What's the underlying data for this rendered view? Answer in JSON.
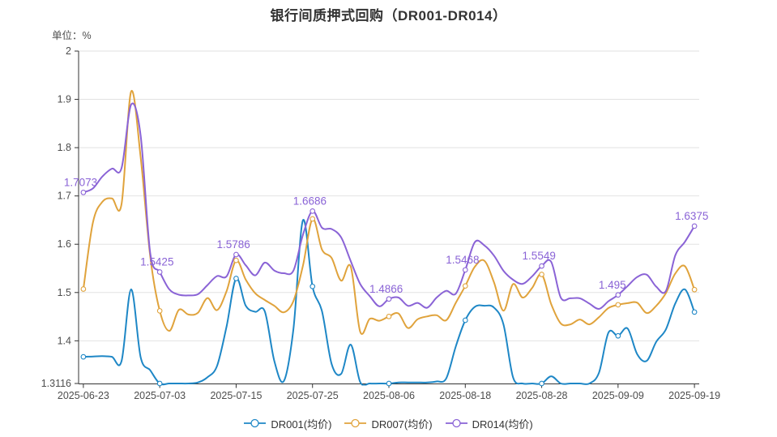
{
  "header": {
    "title": "银行间质押式回购（DR001-DR014）",
    "unit": "单位：%"
  },
  "chart_data": {
    "type": "line",
    "title": "银行间质押式回购（DR001-DR014）",
    "unit": "单位：%",
    "grid": true,
    "smooth": true,
    "legend_position": "bottom",
    "marker_every": 8,
    "ylim": [
      1.3116,
      2
    ],
    "y_tick_labels": [
      "1.3116",
      "1.4",
      "1.5",
      "1.6",
      "1.7",
      "1.8",
      "1.9",
      "2"
    ],
    "y_tick_values": [
      1.3116,
      1.4,
      1.5,
      1.6,
      1.7,
      1.8,
      1.9,
      2
    ],
    "x_tick_labels": [
      "2025-06-23",
      "2025-07-03",
      "2025-07-15",
      "2025-07-25",
      "2025-08-06",
      "2025-08-18",
      "2025-08-28",
      "2025-09-09",
      "2025-09-19"
    ],
    "x_tick_indices": [
      0,
      8,
      16,
      24,
      32,
      40,
      48,
      56,
      64
    ],
    "x": [
      "2025-06-23",
      "2025-06-24",
      "2025-06-25",
      "2025-06-26",
      "2025-06-27",
      "2025-06-30",
      "2025-07-01",
      "2025-07-02",
      "2025-07-03",
      "2025-07-04",
      "2025-07-07",
      "2025-07-08",
      "2025-07-09",
      "2025-07-10",
      "2025-07-11",
      "2025-07-14",
      "2025-07-15",
      "2025-07-16",
      "2025-07-17",
      "2025-07-18",
      "2025-07-21",
      "2025-07-22",
      "2025-07-23",
      "2025-07-24",
      "2025-07-25",
      "2025-07-28",
      "2025-07-29",
      "2025-07-30",
      "2025-07-31",
      "2025-08-01",
      "2025-08-04",
      "2025-08-05",
      "2025-08-06",
      "2025-08-07",
      "2025-08-08",
      "2025-08-11",
      "2025-08-12",
      "2025-08-13",
      "2025-08-14",
      "2025-08-15",
      "2025-08-18",
      "2025-08-19",
      "2025-08-20",
      "2025-08-21",
      "2025-08-22",
      "2025-08-25",
      "2025-08-26",
      "2025-08-27",
      "2025-08-28",
      "2025-08-29",
      "2025-09-01",
      "2025-09-02",
      "2025-09-03",
      "2025-09-04",
      "2025-09-05",
      "2025-09-08",
      "2025-09-09",
      "2025-09-10",
      "2025-09-11",
      "2025-09-12",
      "2025-09-15",
      "2025-09-16",
      "2025-09-17",
      "2025-09-18",
      "2025-09-19"
    ],
    "series": [
      {
        "name": "DR001(均价)",
        "color": "#1e87c6",
        "values": [
          1.3668,
          1.3675,
          1.3682,
          1.3668,
          1.358,
          1.5065,
          1.366,
          1.339,
          1.3116,
          1.3116,
          1.3116,
          1.3116,
          1.3137,
          1.3245,
          1.348,
          1.43,
          1.529,
          1.473,
          1.46,
          1.461,
          1.358,
          1.3168,
          1.425,
          1.6496,
          1.5126,
          1.4605,
          1.352,
          1.3315,
          1.392,
          1.3145,
          1.3116,
          1.3116,
          1.3116,
          1.3137,
          1.3137,
          1.3137,
          1.3137,
          1.3158,
          1.322,
          1.388,
          1.4426,
          1.4705,
          1.4727,
          1.469,
          1.434,
          1.3245,
          1.3116,
          1.3116,
          1.3116,
          1.3266,
          1.3116,
          1.3116,
          1.3116,
          1.3116,
          1.334,
          1.417,
          1.4103,
          1.4255,
          1.3725,
          1.3584,
          1.398,
          1.4234,
          1.4775,
          1.5065,
          1.4595
        ],
        "point_labels": {}
      },
      {
        "name": "DR007(均价)",
        "color": "#e0a33c",
        "values": [
          1.5072,
          1.645,
          1.688,
          1.695,
          1.683,
          1.916,
          1.78,
          1.575,
          1.462,
          1.4205,
          1.464,
          1.4545,
          1.458,
          1.4885,
          1.4635,
          1.503,
          1.5665,
          1.527,
          1.4985,
          1.4845,
          1.4725,
          1.459,
          1.4825,
          1.5555,
          1.6524,
          1.5885,
          1.5715,
          1.5245,
          1.5535,
          1.4185,
          1.4455,
          1.4415,
          1.4504,
          1.4566,
          1.4265,
          1.4445,
          1.4505,
          1.453,
          1.4425,
          1.4785,
          1.5136,
          1.5535,
          1.5658,
          1.5215,
          1.4623,
          1.5175,
          1.4895,
          1.5095,
          1.5375,
          1.476,
          1.436,
          1.434,
          1.444,
          1.434,
          1.449,
          1.468,
          1.4746,
          1.478,
          1.479,
          1.4575,
          1.4725,
          1.4985,
          1.5395,
          1.5545,
          1.506
        ],
        "point_labels": {}
      },
      {
        "name": "DR014(均价)",
        "color": "#8a63d6",
        "values": [
          1.7073,
          1.7155,
          1.7405,
          1.7565,
          1.7575,
          1.889,
          1.825,
          1.582,
          1.5425,
          1.5065,
          1.4955,
          1.494,
          1.4965,
          1.5155,
          1.534,
          1.5335,
          1.5786,
          1.5565,
          1.5355,
          1.562,
          1.5455,
          1.54,
          1.5455,
          1.6195,
          1.6686,
          1.634,
          1.6315,
          1.614,
          1.565,
          1.5175,
          1.4925,
          1.4715,
          1.4866,
          1.4895,
          1.4725,
          1.4785,
          1.4685,
          1.4895,
          1.5035,
          1.4975,
          1.5468,
          1.6045,
          1.5975,
          1.5765,
          1.545,
          1.5265,
          1.518,
          1.5335,
          1.5549,
          1.5635,
          1.4895,
          1.488,
          1.488,
          1.477,
          1.466,
          1.482,
          1.495,
          1.5135,
          1.532,
          1.537,
          1.512,
          1.503,
          1.577,
          1.605,
          1.6375
        ],
        "point_labels": {
          "0": "1.7073",
          "8": "1.5425",
          "16": "1.5786",
          "24": "1.6686",
          "32": "1.4866",
          "40": "1.5468",
          "48": "1.5549",
          "56": "1.495",
          "64": "1.6375"
        }
      }
    ],
    "colors": {
      "axis_line": "#333333",
      "axis_text": "#4d4d4d",
      "grid_line": "#e2e2e2",
      "annotation_text": "#8a63d6"
    }
  }
}
